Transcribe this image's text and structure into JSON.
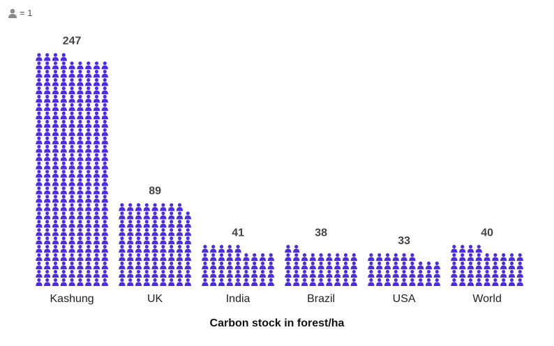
{
  "legend": {
    "icon": "person-icon",
    "text": "= 1"
  },
  "chart_data": {
    "type": "bar",
    "style": "pictogram",
    "categories": [
      "Kashung",
      "UK",
      "India",
      "Brazil",
      "USA",
      "World"
    ],
    "values": [
      247,
      89,
      41,
      38,
      33,
      40
    ],
    "unit_per_icon": 1,
    "xlabel": "Carbon stock in forest/ha",
    "ylabel": "",
    "title": "",
    "icon_color": "#4a2de0",
    "grid": false
  }
}
